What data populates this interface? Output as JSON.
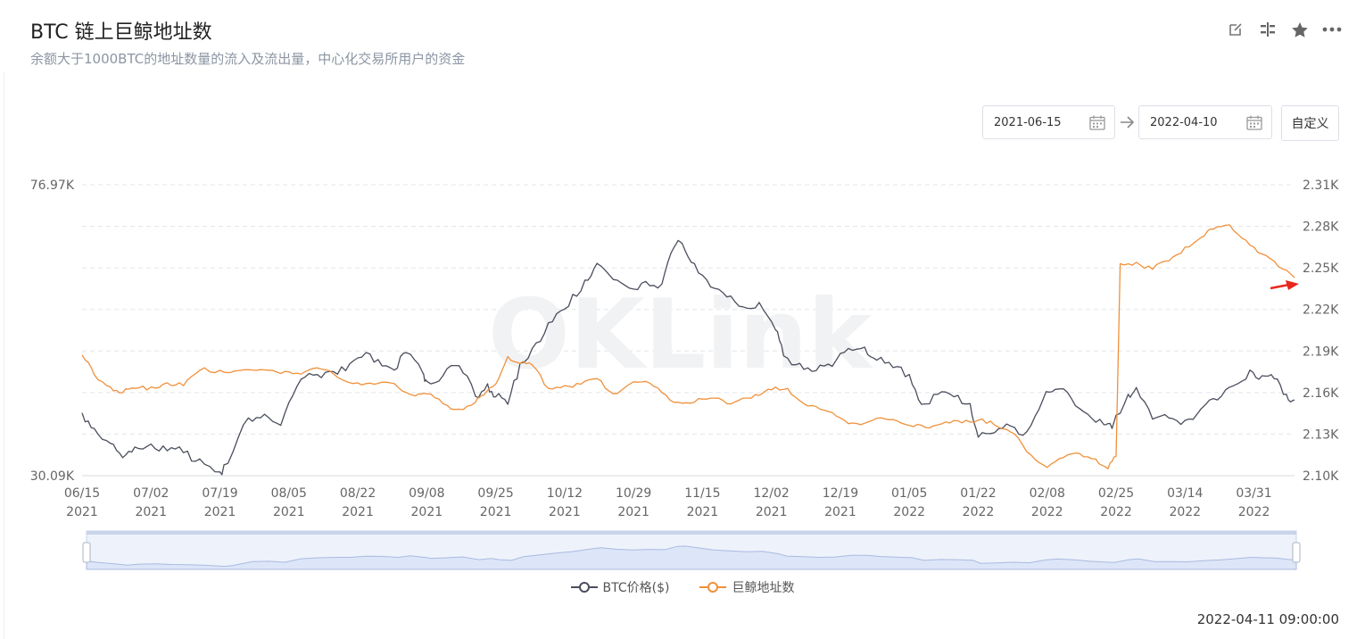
{
  "header": {
    "title": "BTC 链上巨鲸地址数",
    "subtitle": "余额大于1000BTC的地址数量的流入及流出量，中心化交易所用户的资金"
  },
  "toolbar": {
    "icons": [
      "edit-icon",
      "compare-icon",
      "star-icon",
      "more-icon"
    ]
  },
  "date_range": {
    "start": "2021-06-15",
    "end": "2022-04-10",
    "custom_label": "自定义"
  },
  "watermark": "OKLink",
  "timestamp": "2022-04-11 09:00:00",
  "colors": {
    "price_line": "#4a4e5c",
    "whale_line": "#f0903a",
    "grid": "#e2e5ea",
    "axis_text": "#666666",
    "zoom_fill": "#dce6f8",
    "arrow": "#e8281f"
  },
  "chart_data": {
    "type": "line",
    "title": "BTC 链上巨鲸地址数",
    "x_ticks": [
      "06/15\n2021",
      "07/02\n2021",
      "07/19\n2021",
      "08/05\n2021",
      "08/22\n2021",
      "09/08\n2021",
      "09/25\n2021",
      "10/12\n2021",
      "10/29\n2021",
      "11/15\n2021",
      "12/02\n2021",
      "12/19\n2021",
      "01/05\n2022",
      "01/22\n2022",
      "02/08\n2022",
      "02/25\n2022",
      "03/14\n2022",
      "03/31\n2022"
    ],
    "left_axis": {
      "ticks": [
        "76.97K",
        "30.09K"
      ],
      "ylim": [
        30090,
        76970
      ]
    },
    "right_axis": {
      "ticks": [
        "2.31K",
        "2.28K",
        "2.25K",
        "2.22K",
        "2.19K",
        "2.16K",
        "2.13K",
        "2.10K"
      ],
      "ylim": [
        2100,
        2310
      ]
    },
    "grid": true,
    "legend_position": "bottom",
    "series": [
      {
        "name": "BTC价格($)",
        "axis": "left",
        "x": [
          "2021-06-15",
          "2021-06-18",
          "2021-06-22",
          "2021-06-25",
          "2021-06-28",
          "2021-07-02",
          "2021-07-06",
          "2021-07-10",
          "2021-07-14",
          "2021-07-19",
          "2021-07-21",
          "2021-07-26",
          "2021-07-30",
          "2021-08-03",
          "2021-08-07",
          "2021-08-11",
          "2021-08-15",
          "2021-08-19",
          "2021-08-23",
          "2021-08-27",
          "2021-08-31",
          "2021-09-03",
          "2021-09-07",
          "2021-09-08",
          "2021-09-12",
          "2021-09-16",
          "2021-09-20",
          "2021-09-23",
          "2021-09-25",
          "2021-09-28",
          "2021-10-01",
          "2021-10-05",
          "2021-10-09",
          "2021-10-13",
          "2021-10-17",
          "2021-10-20",
          "2021-10-24",
          "2021-10-28",
          "2021-11-01",
          "2021-11-05",
          "2021-11-08",
          "2021-11-10",
          "2021-11-13",
          "2021-11-17",
          "2021-11-21",
          "2021-11-25",
          "2021-11-29",
          "2021-12-03",
          "2021-12-05",
          "2021-12-09",
          "2021-12-13",
          "2021-12-17",
          "2021-12-21",
          "2021-12-25",
          "2021-12-28",
          "2022-01-01",
          "2022-01-05",
          "2022-01-08",
          "2022-01-12",
          "2022-01-16",
          "2022-01-20",
          "2022-01-22",
          "2022-01-26",
          "2022-01-30",
          "2022-02-03",
          "2022-02-07",
          "2022-02-10",
          "2022-02-14",
          "2022-02-18",
          "2022-02-22",
          "2022-02-24",
          "2022-02-28",
          "2022-03-02",
          "2022-03-06",
          "2022-03-10",
          "2022-03-14",
          "2022-03-18",
          "2022-03-22",
          "2022-03-26",
          "2022-03-30",
          "2022-04-02",
          "2022-04-05",
          "2022-04-08",
          "2022-04-10"
        ],
        "values": [
          40200,
          37700,
          35300,
          33000,
          34700,
          35200,
          34100,
          33800,
          32800,
          30700,
          32100,
          39400,
          40000,
          38200,
          44500,
          46300,
          46900,
          47000,
          49200,
          48800,
          47100,
          49900,
          46700,
          45300,
          46200,
          47800,
          42900,
          44900,
          42800,
          41600,
          48200,
          51500,
          54900,
          57400,
          61600,
          64300,
          61700,
          60300,
          61400,
          61000,
          66900,
          67500,
          64300,
          60500,
          58900,
          57300,
          58000,
          53600,
          49400,
          48200,
          47000,
          47700,
          50600,
          50800,
          48700,
          47500,
          46400,
          41600,
          43200,
          42800,
          41700,
          36300,
          37000,
          38100,
          37200,
          42400,
          44000,
          42500,
          40000,
          38300,
          37700,
          43200,
          44300,
          39200,
          39400,
          39000,
          40900,
          42300,
          44600,
          47100,
          46200,
          45700,
          43200,
          42300
        ],
        "ylim": [
          30090,
          76970
        ]
      },
      {
        "name": "巨鲸地址数",
        "axis": "right",
        "x": [
          "2021-06-15",
          "2021-06-18",
          "2021-06-22",
          "2021-06-25",
          "2021-06-28",
          "2021-07-02",
          "2021-07-06",
          "2021-07-10",
          "2021-07-14",
          "2021-07-19",
          "2021-07-24",
          "2021-07-28",
          "2021-08-01",
          "2021-08-05",
          "2021-08-09",
          "2021-08-13",
          "2021-08-17",
          "2021-08-22",
          "2021-08-26",
          "2021-08-30",
          "2021-09-03",
          "2021-09-06",
          "2021-09-08",
          "2021-09-12",
          "2021-09-16",
          "2021-09-20",
          "2021-09-22",
          "2021-09-25",
          "2021-09-28",
          "2021-10-01",
          "2021-10-04",
          "2021-10-08",
          "2021-10-12",
          "2021-10-16",
          "2021-10-20",
          "2021-10-24",
          "2021-10-28",
          "2021-11-01",
          "2021-11-05",
          "2021-11-09",
          "2021-11-13",
          "2021-11-17",
          "2021-11-21",
          "2021-11-25",
          "2021-11-29",
          "2021-12-02",
          "2021-12-06",
          "2021-12-10",
          "2021-12-14",
          "2021-12-18",
          "2021-12-22",
          "2021-12-26",
          "2021-12-30",
          "2022-01-03",
          "2022-01-07",
          "2022-01-11",
          "2022-01-15",
          "2022-01-19",
          "2022-01-23",
          "2022-01-27",
          "2022-01-31",
          "2022-02-04",
          "2022-02-08",
          "2022-02-12",
          "2022-02-16",
          "2022-02-20",
          "2022-02-23",
          "2022-02-25",
          "2022-02-26",
          "2022-03-02",
          "2022-03-06",
          "2022-03-10",
          "2022-03-14",
          "2022-03-18",
          "2022-03-21",
          "2022-03-25",
          "2022-03-29",
          "2022-04-02",
          "2022-04-06",
          "2022-04-10"
        ],
        "values": [
          2187,
          2173,
          2164,
          2160,
          2163,
          2164,
          2167,
          2165,
          2176,
          2176,
          2176,
          2176,
          2176,
          2175,
          2175,
          2177,
          2171,
          2167,
          2166,
          2167,
          2160,
          2159,
          2159,
          2152,
          2148,
          2153,
          2158,
          2166,
          2186,
          2181,
          2180,
          2163,
          2165,
          2166,
          2170,
          2159,
          2166,
          2168,
          2160,
          2153,
          2153,
          2156,
          2152,
          2156,
          2158,
          2162,
          2163,
          2152,
          2148,
          2143,
          2138,
          2139,
          2141,
          2138,
          2137,
          2136,
          2138,
          2140,
          2141,
          2135,
          2130,
          2115,
          2106,
          2113,
          2116,
          2112,
          2105,
          2114,
          2253,
          2254,
          2249,
          2255,
          2265,
          2272,
          2278,
          2281,
          2270,
          2260,
          2251,
          2243
        ],
        "ylim": [
          2100,
          2310
        ]
      }
    ]
  }
}
